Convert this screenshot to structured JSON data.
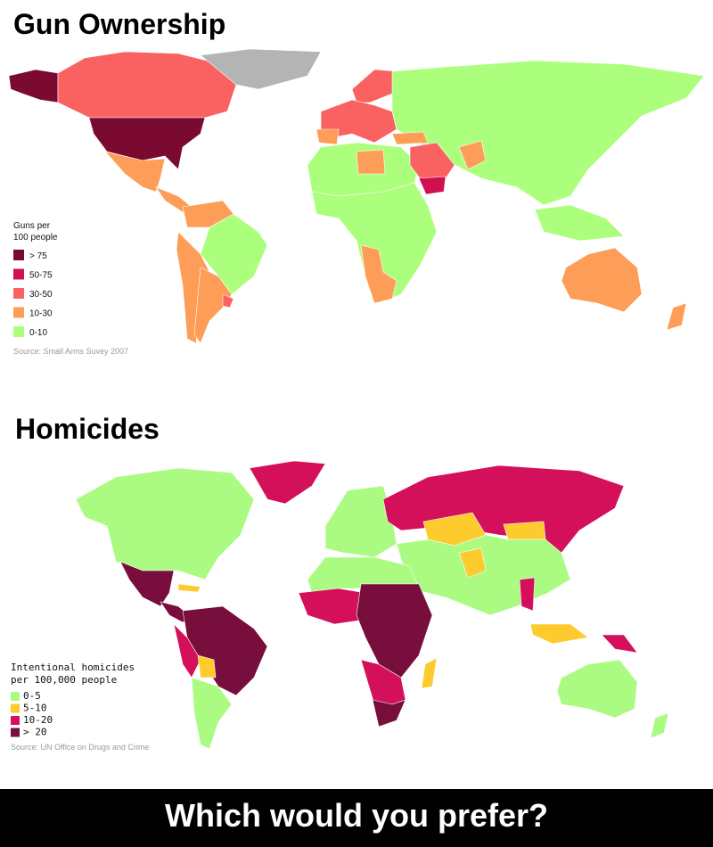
{
  "maps": [
    {
      "title": "Gun Ownership",
      "legend_title": [
        "Guns per",
        "100 people"
      ],
      "legend": [
        {
          "label": "> 75",
          "color": "#7b0a31"
        },
        {
          "label": "50-75",
          "color": "#d1104f"
        },
        {
          "label": "30-50",
          "color": "#fa6161"
        },
        {
          "label": "10-30",
          "color": "#fe9d57"
        },
        {
          "label": "0-10",
          "color": "#acff7c"
        }
      ],
      "source": "Source: Small Arms Suvey 2007"
    },
    {
      "title": "Homicides",
      "legend_title": [
        "Intentional homicides",
        "per 100,000 people"
      ],
      "legend": [
        {
          "label": "0-5",
          "color": "#abfb82"
        },
        {
          "label": "5-10",
          "color": "#fdcb2e"
        },
        {
          "label": "10-20",
          "color": "#d5105b"
        },
        {
          "label": "> 20",
          "color": "#780e3b"
        }
      ],
      "source": "Source: UN Office on Drugs and Crime"
    }
  ],
  "caption": "Which would you prefer?"
}
